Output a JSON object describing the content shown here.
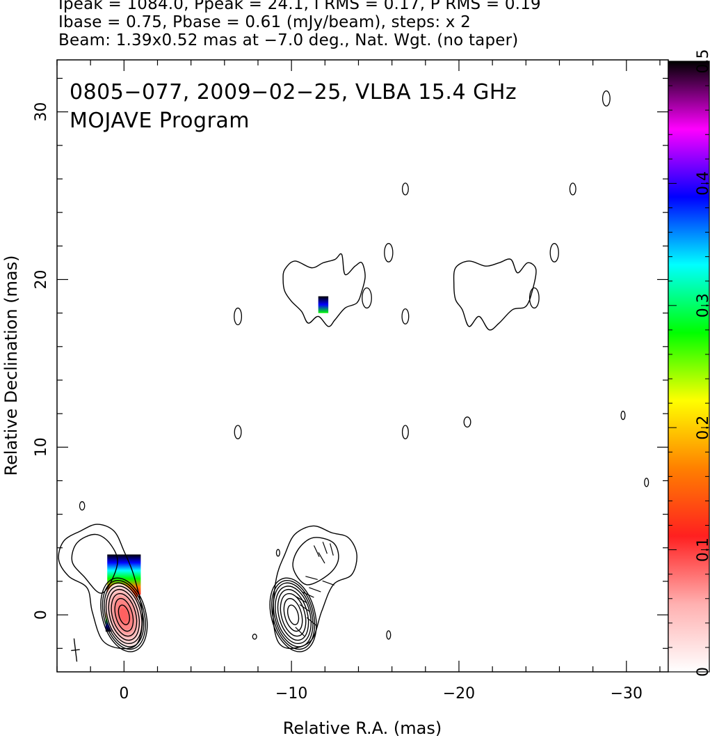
{
  "header": {
    "line1": "Ipeak = 1084.0, Ppeak = 24.1, I RMS = 0.17, P RMS = 0.19",
    "line2": "Ibase = 0.75, Pbase = 0.61 (mJy/beam), steps: x 2",
    "line3": "Beam: 1.39x0.52 mas at −7.0 deg., Nat. Wgt. (no taper)"
  },
  "chart_data": {
    "type": "contour",
    "title_line1": "0805−077, 2009−02−25, VLBA 15.4 GHz",
    "title_line2": "MOJAVE Program",
    "xlabel": "Relative R.A. (mas)",
    "ylabel": "Relative Declination (mas)",
    "xlim": [
      4,
      -32.5
    ],
    "ylim": [
      -3.4,
      33.1
    ],
    "x_ticks": [
      0,
      -10,
      -20,
      -30
    ],
    "x_tick_labels": [
      "0",
      "−10",
      "−20",
      "−30"
    ],
    "y_ticks": [
      0,
      10,
      20,
      30
    ],
    "y_tick_labels": [
      "0",
      "10",
      "20",
      "30"
    ],
    "colorbar": {
      "range": [
        0,
        0.5
      ],
      "ticks": [
        0,
        0.1,
        0.2,
        0.3,
        0.4,
        0.5
      ],
      "tick_labels": [
        "0",
        "0.1",
        "0.2",
        "0.3",
        "0.4",
        "0.5"
      ],
      "colors": [
        "#ffffff",
        "#ffb0b0",
        "#ff2020",
        "#ff8000",
        "#ffff00",
        "#00ff00",
        "#00ffff",
        "#0000ff",
        "#ff00ff",
        "#000000"
      ]
    },
    "contour_sets": [
      {
        "center": [
          0.0,
          0.0
        ],
        "rings": [
          [
            0.3,
            0.6
          ],
          [
            0.5,
            1.0
          ],
          [
            0.7,
            1.3
          ],
          [
            0.85,
            1.55
          ],
          [
            1.0,
            1.75
          ],
          [
            1.1,
            1.95
          ],
          [
            1.2,
            2.1
          ],
          [
            1.3,
            2.25
          ]
        ],
        "angle": -15
      },
      {
        "center": [
          -10.1,
          0.0
        ],
        "rings": [
          [
            0.3,
            0.6
          ],
          [
            0.5,
            1.0
          ],
          [
            0.7,
            1.3
          ],
          [
            0.85,
            1.55
          ],
          [
            1.0,
            1.75
          ],
          [
            1.1,
            1.95
          ],
          [
            1.2,
            2.1
          ],
          [
            1.3,
            2.25
          ]
        ],
        "angle": -15
      }
    ],
    "jet_contours": [
      [
        [
          0.2,
          -2.0
        ],
        [
          1.3,
          -1.5
        ],
        [
          1.9,
          0.2
        ],
        [
          2.2,
          1.6
        ],
        [
          3.3,
          2.3
        ],
        [
          3.9,
          3.3
        ],
        [
          3.6,
          4.4
        ],
        [
          2.6,
          5.0
        ],
        [
          1.6,
          5.4
        ],
        [
          0.6,
          5.0
        ],
        [
          0.0,
          3.8
        ],
        [
          -0.6,
          2.3
        ],
        [
          -1.1,
          0.0
        ],
        [
          -0.8,
          -1.7
        ]
      ],
      [
        [
          1.3,
          1.3
        ],
        [
          2.4,
          2.3
        ],
        [
          3.1,
          3.2
        ],
        [
          2.8,
          4.3
        ],
        [
          1.7,
          4.8
        ],
        [
          0.8,
          4.2
        ],
        [
          0.4,
          3.0
        ]
      ],
      [
        [
          -10.0,
          -2.0
        ],
        [
          -11.2,
          -1.5
        ],
        [
          -11.8,
          0.2
        ],
        [
          -12.5,
          1.8
        ],
        [
          -13.6,
          2.4
        ],
        [
          -13.9,
          3.6
        ],
        [
          -13.4,
          4.6
        ],
        [
          -12.4,
          4.9
        ],
        [
          -11.3,
          5.3
        ],
        [
          -10.2,
          4.8
        ],
        [
          -9.6,
          3.6
        ],
        [
          -9.1,
          2.2
        ],
        [
          -8.9,
          0.0
        ],
        [
          -9.2,
          -1.6
        ]
      ],
      [
        [
          -10.9,
          1.8
        ],
        [
          -12.2,
          2.4
        ],
        [
          -12.8,
          3.3
        ],
        [
          -12.5,
          4.3
        ],
        [
          -11.3,
          4.6
        ],
        [
          -10.4,
          3.9
        ],
        [
          -10.1,
          2.8
        ]
      ],
      [
        [
          -9.6,
          20.6
        ],
        [
          -10.2,
          21.1
        ],
        [
          -11.2,
          20.7
        ],
        [
          -11.9,
          21.0
        ],
        [
          -12.6,
          21.2
        ],
        [
          -13.0,
          21.5
        ],
        [
          -13.2,
          20.3
        ],
        [
          -13.8,
          20.8
        ],
        [
          -14.2,
          21.0
        ],
        [
          -14.4,
          20.2
        ],
        [
          -14.2,
          19.3
        ],
        [
          -13.9,
          18.6
        ],
        [
          -13.2,
          18.3
        ],
        [
          -12.6,
          17.6
        ],
        [
          -12.2,
          17.2
        ],
        [
          -11.6,
          17.8
        ],
        [
          -11.0,
          17.4
        ],
        [
          -10.6,
          18.1
        ],
        [
          -10.0,
          18.7
        ],
        [
          -9.6,
          19.3
        ],
        [
          -9.5,
          20.0
        ]
      ],
      [
        [
          -19.8,
          20.7
        ],
        [
          -20.6,
          21.1
        ],
        [
          -21.6,
          20.8
        ],
        [
          -22.4,
          21.0
        ],
        [
          -23.1,
          21.2
        ],
        [
          -23.5,
          20.4
        ],
        [
          -24.1,
          21.0
        ],
        [
          -24.6,
          20.6
        ],
        [
          -24.4,
          19.4
        ],
        [
          -24.0,
          18.4
        ],
        [
          -23.2,
          18.2
        ],
        [
          -22.4,
          17.4
        ],
        [
          -21.8,
          17.0
        ],
        [
          -21.2,
          17.8
        ],
        [
          -20.6,
          17.2
        ],
        [
          -20.2,
          18.2
        ],
        [
          -19.8,
          18.8
        ],
        [
          -19.7,
          19.7
        ]
      ]
    ],
    "isolated_blobs": [
      [
        -6.8,
        17.8,
        0.22,
        0.5
      ],
      [
        -6.8,
        10.9,
        0.2,
        0.4
      ],
      [
        -16.8,
        25.4,
        0.18,
        0.35
      ],
      [
        -16.8,
        17.8,
        0.2,
        0.45
      ],
      [
        -16.8,
        10.9,
        0.18,
        0.4
      ],
      [
        -26.8,
        25.4,
        0.18,
        0.35
      ],
      [
        -28.8,
        30.8,
        0.22,
        0.45
      ],
      [
        -29.8,
        11.9,
        0.12,
        0.25
      ],
      [
        -31.2,
        7.9,
        0.12,
        0.25
      ],
      [
        -15.8,
        -1.2,
        0.12,
        0.25
      ],
      [
        -7.8,
        -1.3,
        0.12,
        0.15
      ],
      [
        -9.2,
        3.7,
        0.1,
        0.2
      ],
      [
        2.5,
        6.5,
        0.15,
        0.25
      ],
      [
        -15.8,
        21.6,
        0.25,
        0.55
      ],
      [
        -25.7,
        21.6,
        0.25,
        0.55
      ],
      [
        -20.5,
        11.5,
        0.2,
        0.3
      ],
      [
        -14.5,
        18.9,
        0.28,
        0.6
      ],
      [
        -24.5,
        18.9,
        0.28,
        0.6
      ]
    ],
    "pol_patches": [
      {
        "x": 1.0,
        "y": 3.6,
        "w": 2.0,
        "h": 2.4,
        "grad": [
          "#000000",
          "#0000ff",
          "#00ffff",
          "#00ff00",
          "#ff8000",
          "#ff2020"
        ]
      },
      {
        "x": 0.8,
        "y": 1.4,
        "w": 1.6,
        "h": 1.2,
        "grad": [
          "#ff4000",
          "#ff2020"
        ]
      },
      {
        "x": 1.1,
        "y": 0.4,
        "w": 1.6,
        "h": 1.4,
        "grad": [
          "#ff2020",
          "#ff8000",
          "#00ff00",
          "#0000ff",
          "#000000"
        ]
      },
      {
        "x": -11.6,
        "y": 19.0,
        "w": 0.6,
        "h": 1.0,
        "grad": [
          "#000000",
          "#0000ff",
          "#00ff00"
        ]
      }
    ],
    "evpa_vectors": [
      [
        -10.6,
        0.9,
        30
      ],
      [
        -11.0,
        1.2,
        25
      ],
      [
        -11.4,
        1.5,
        20
      ],
      [
        -10.8,
        0.4,
        35
      ],
      [
        -11.2,
        2.2,
        15
      ],
      [
        -11.8,
        3.4,
        60
      ],
      [
        -12.0,
        4.0,
        70
      ],
      [
        -11.5,
        3.8,
        65
      ],
      [
        -12.4,
        3.9,
        75
      ],
      [
        -11.2,
        -0.4,
        40
      ],
      [
        -10.5,
        -1.0,
        45
      ],
      [
        -12.2,
        1.9,
        20
      ]
    ],
    "beam": {
      "x": 2.9,
      "y": -2.1,
      "major": 1.39,
      "minor": 0.52,
      "pa": -7.0
    }
  }
}
